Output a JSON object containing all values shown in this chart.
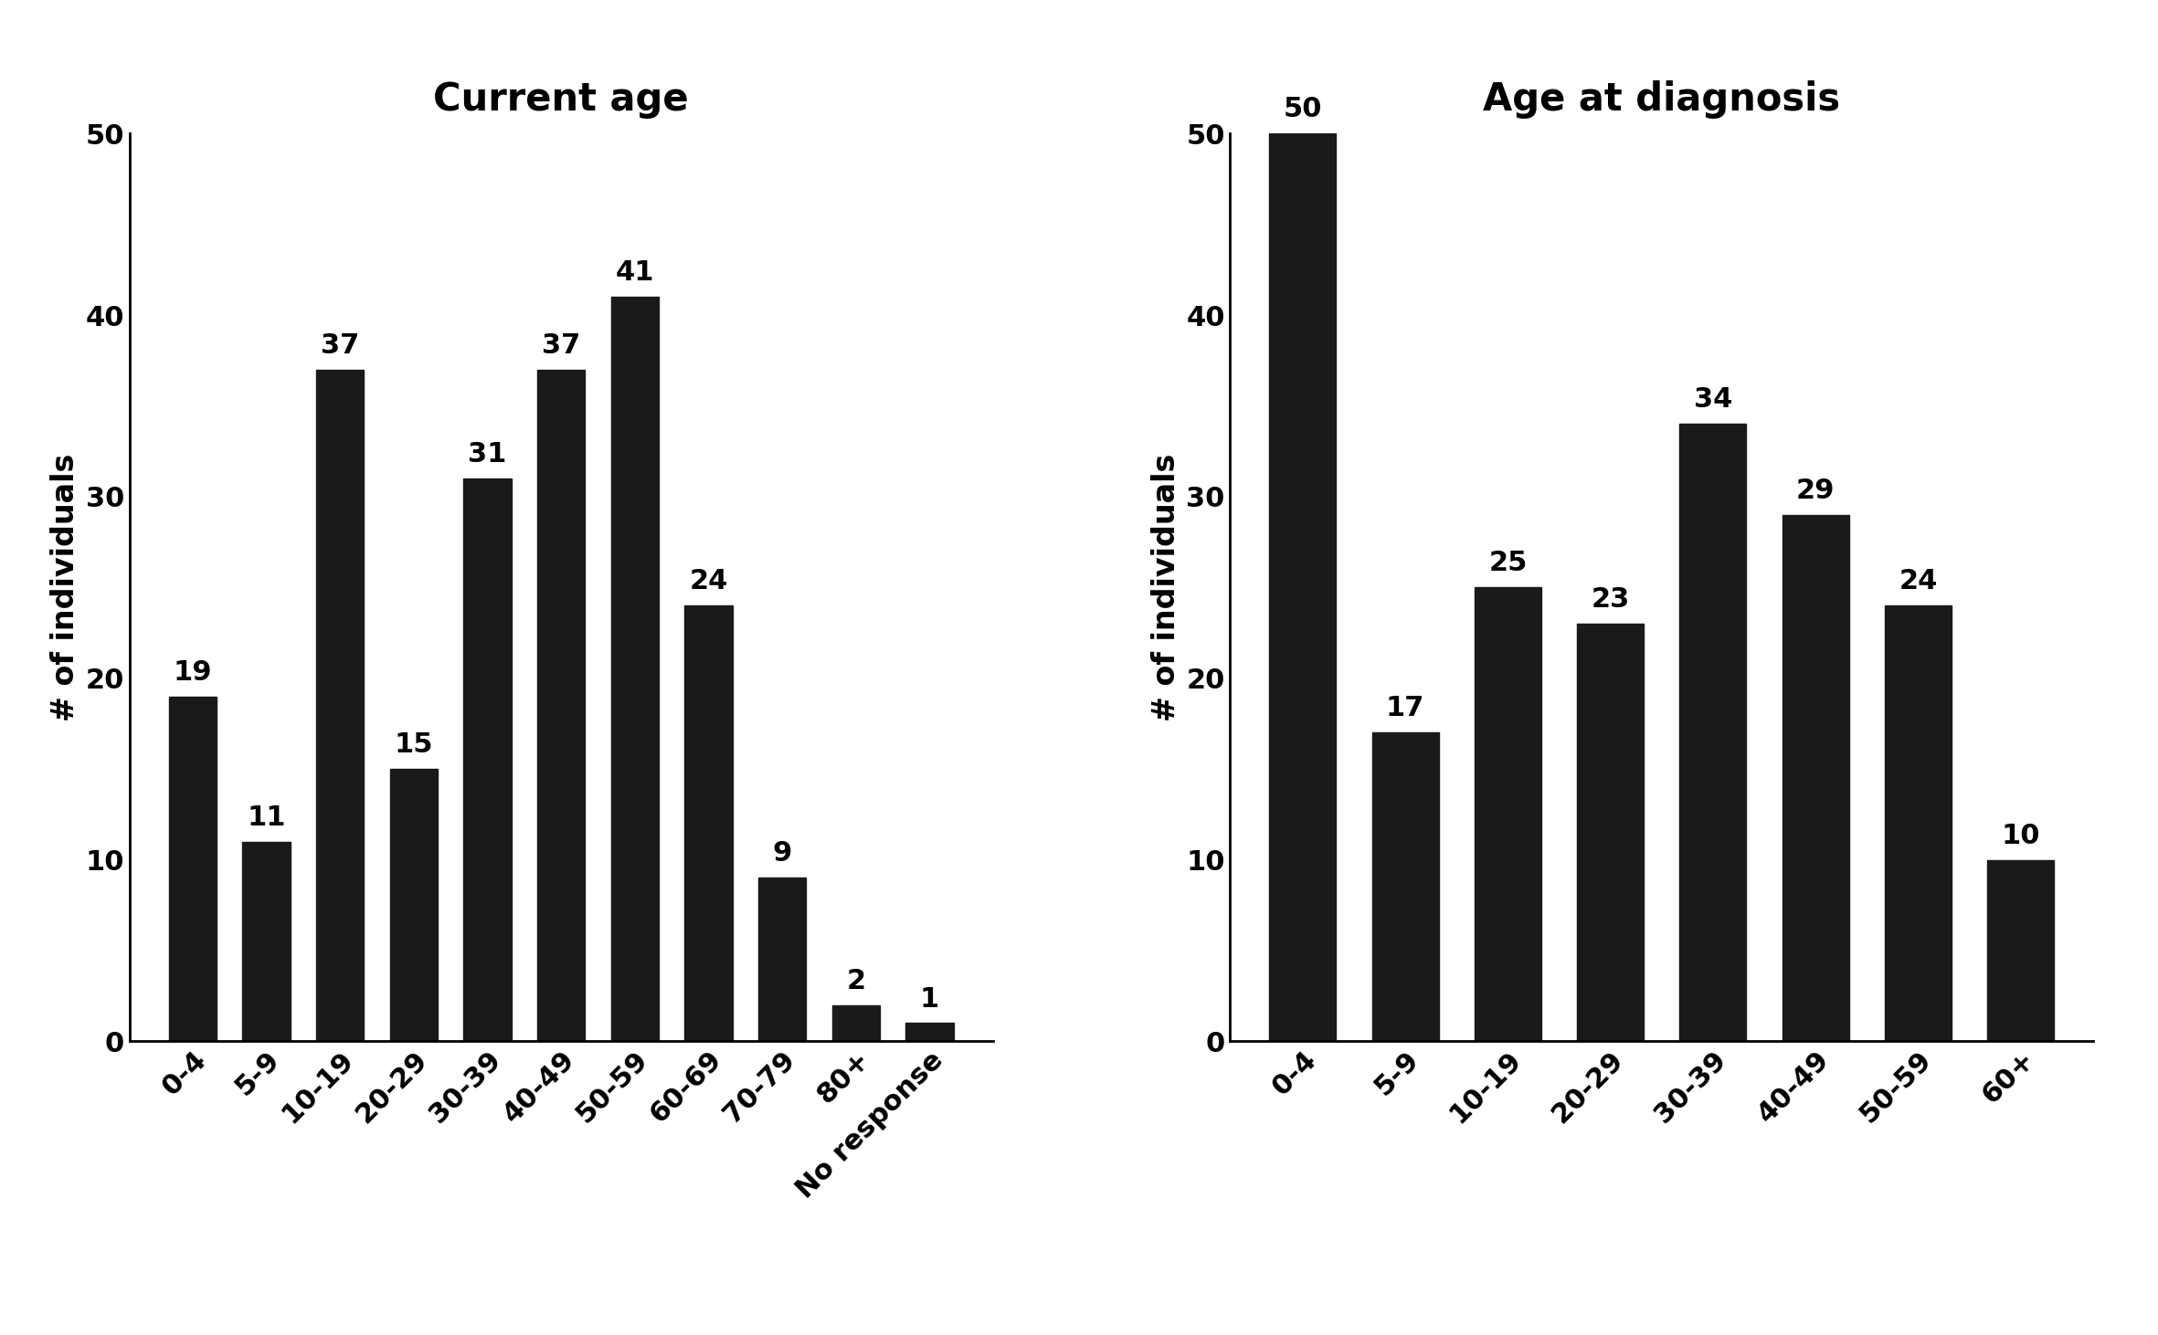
{
  "chart1": {
    "title": "Current age",
    "categories": [
      "0-4",
      "5-9",
      "10-19",
      "20-29",
      "30-39",
      "40-49",
      "50-59",
      "60-69",
      "70-79",
      "80+",
      "No response"
    ],
    "values": [
      19,
      11,
      37,
      15,
      31,
      37,
      41,
      24,
      9,
      2,
      1
    ],
    "ylabel": "# of individuals",
    "ylim": [
      0,
      50
    ],
    "yticks": [
      0,
      10,
      20,
      30,
      40,
      50
    ]
  },
  "chart2": {
    "title": "Age at diagnosis",
    "categories": [
      "0-4",
      "5-9",
      "10-19",
      "20-29",
      "30-39",
      "40-49",
      "50-59",
      "60+"
    ],
    "values": [
      50,
      17,
      25,
      23,
      34,
      29,
      24,
      10
    ],
    "ylabel": "# of individuals",
    "ylim": [
      0,
      50
    ],
    "yticks": [
      0,
      10,
      20,
      30,
      40,
      50
    ]
  },
  "bar_color": "#1a1a1a",
  "bar_edge_color": "#1a1a1a",
  "background_color": "#ffffff",
  "title_fontsize": 30,
  "label_fontsize": 24,
  "tick_fontsize": 22,
  "annotation_fontsize": 22,
  "bar_width": 0.65
}
